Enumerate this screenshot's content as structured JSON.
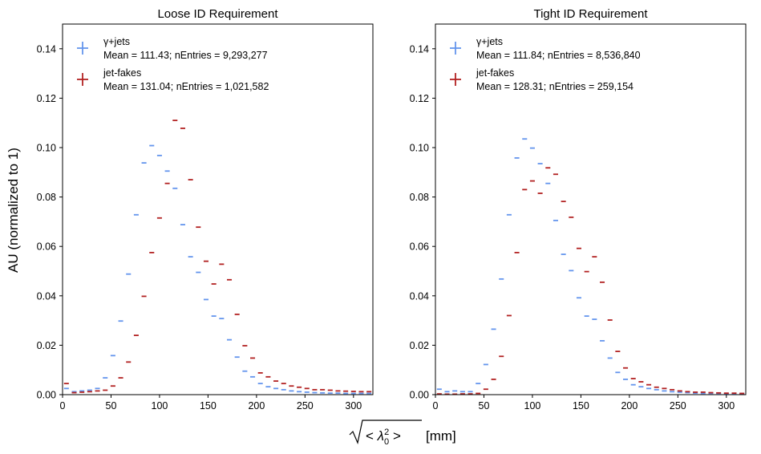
{
  "figure": {
    "ylabel": "AU (normalized to 1)",
    "xlabel_unit": "[mm]",
    "xlabel_math": "sqrt(<λ0^2>)"
  },
  "chart_data": [
    {
      "type": "scatter",
      "title": "Loose ID Requirement",
      "xlim": [
        0,
        320
      ],
      "ylim": [
        0,
        0.15
      ],
      "bin_width": 8,
      "xticks": [
        0,
        50,
        100,
        150,
        200,
        250,
        300
      ],
      "yticks": [
        0.0,
        0.02,
        0.04,
        0.06,
        0.08,
        0.1,
        0.12,
        0.14
      ],
      "ytick_labels": [
        "0.00",
        "0.02",
        "0.04",
        "0.06",
        "0.08",
        "0.10",
        "0.12",
        "0.14"
      ],
      "legend_position": "upper-left",
      "series": [
        {
          "name": "γ+jets",
          "stats": "Mean = 111.43; nEntries = 9,293,277",
          "color": "#6495ED",
          "x": [
            4,
            12,
            20,
            28,
            36,
            44,
            52,
            60,
            68,
            76,
            84,
            92,
            100,
            108,
            116,
            124,
            132,
            140,
            148,
            156,
            164,
            172,
            180,
            188,
            196,
            204,
            212,
            220,
            228,
            236,
            244,
            252,
            260,
            268,
            276,
            284,
            292,
            300,
            308,
            316
          ],
          "values": [
            0.0025,
            0.0012,
            0.0015,
            0.0018,
            0.0025,
            0.0068,
            0.0158,
            0.0298,
            0.0488,
            0.0728,
            0.0938,
            0.1008,
            0.0968,
            0.0905,
            0.0835,
            0.0688,
            0.0558,
            0.0495,
            0.0385,
            0.0318,
            0.0308,
            0.0222,
            0.0152,
            0.0095,
            0.0072,
            0.0045,
            0.0032,
            0.0025,
            0.002,
            0.0015,
            0.0012,
            0.001,
            0.0008,
            0.0007,
            0.0006,
            0.0006,
            0.0005,
            0.0005,
            0.0005,
            0.0005
          ]
        },
        {
          "name": "jet-fakes",
          "stats": "Mean = 131.04; nEntries =  1,021,582",
          "color": "#B22222",
          "x": [
            4,
            12,
            20,
            28,
            36,
            44,
            52,
            60,
            68,
            76,
            84,
            92,
            100,
            108,
            116,
            124,
            132,
            140,
            148,
            156,
            164,
            172,
            180,
            188,
            196,
            204,
            212,
            220,
            228,
            236,
            244,
            252,
            260,
            268,
            276,
            284,
            292,
            300,
            308,
            316
          ],
          "values": [
            0.0045,
            0.0008,
            0.001,
            0.0012,
            0.0015,
            0.0018,
            0.0035,
            0.0068,
            0.0132,
            0.024,
            0.0398,
            0.0575,
            0.0715,
            0.0855,
            0.111,
            0.1078,
            0.087,
            0.0678,
            0.054,
            0.0448,
            0.0528,
            0.0465,
            0.0325,
            0.0198,
            0.0148,
            0.0088,
            0.0072,
            0.0055,
            0.0045,
            0.0035,
            0.003,
            0.0025,
            0.002,
            0.002,
            0.0018,
            0.0015,
            0.0014,
            0.0013,
            0.0012,
            0.0012
          ]
        }
      ]
    },
    {
      "type": "scatter",
      "title": "Tight ID Requirement",
      "xlim": [
        0,
        320
      ],
      "ylim": [
        0,
        0.15
      ],
      "bin_width": 8,
      "xticks": [
        0,
        50,
        100,
        150,
        200,
        250,
        300
      ],
      "yticks": [
        0.0,
        0.02,
        0.04,
        0.06,
        0.08,
        0.1,
        0.12,
        0.14
      ],
      "ytick_labels": [
        "0.00",
        "0.02",
        "0.04",
        "0.06",
        "0.08",
        "0.10",
        "0.12",
        "0.14"
      ],
      "legend_position": "upper-left",
      "series": [
        {
          "name": "γ+jets",
          "stats": "Mean = 111.84; nEntries = 8,536,840",
          "color": "#6495ED",
          "x": [
            4,
            12,
            20,
            28,
            36,
            44,
            52,
            60,
            68,
            76,
            84,
            92,
            100,
            108,
            116,
            124,
            132,
            140,
            148,
            156,
            164,
            172,
            180,
            188,
            196,
            204,
            212,
            220,
            228,
            236,
            244,
            252,
            260,
            268,
            276,
            284,
            292,
            300,
            308,
            316
          ],
          "values": [
            0.0022,
            0.0012,
            0.0015,
            0.0012,
            0.0012,
            0.0045,
            0.0122,
            0.0265,
            0.0468,
            0.0728,
            0.0958,
            0.1035,
            0.0998,
            0.0935,
            0.0855,
            0.0705,
            0.0568,
            0.0502,
            0.0392,
            0.0318,
            0.0305,
            0.0218,
            0.0148,
            0.009,
            0.0062,
            0.004,
            0.0032,
            0.0025,
            0.002,
            0.0015,
            0.0012,
            0.001,
            0.0008,
            0.0006,
            0.0005,
            0.0005,
            0.0005,
            0.0004,
            0.0004,
            0.0004
          ]
        },
        {
          "name": "jet-fakes",
          "stats": "Mean = 128.31; nEntries =  259,154",
          "color": "#B22222",
          "x": [
            4,
            12,
            20,
            28,
            36,
            44,
            52,
            60,
            68,
            76,
            84,
            92,
            100,
            108,
            116,
            124,
            132,
            140,
            148,
            156,
            164,
            172,
            180,
            188,
            196,
            204,
            212,
            220,
            228,
            236,
            244,
            252,
            260,
            268,
            276,
            284,
            292,
            300,
            308,
            316
          ],
          "values": [
            0.0003,
            0.0002,
            0.0002,
            0.0003,
            0.0003,
            0.0005,
            0.0022,
            0.0062,
            0.0155,
            0.032,
            0.0575,
            0.083,
            0.0865,
            0.0815,
            0.0918,
            0.0892,
            0.0782,
            0.0718,
            0.0592,
            0.0498,
            0.0558,
            0.0455,
            0.0302,
            0.0175,
            0.0108,
            0.0065,
            0.0052,
            0.004,
            0.003,
            0.0025,
            0.002,
            0.0015,
            0.0012,
            0.001,
            0.001,
            0.0008,
            0.0007,
            0.0006,
            0.0006,
            0.0005
          ]
        }
      ]
    }
  ]
}
